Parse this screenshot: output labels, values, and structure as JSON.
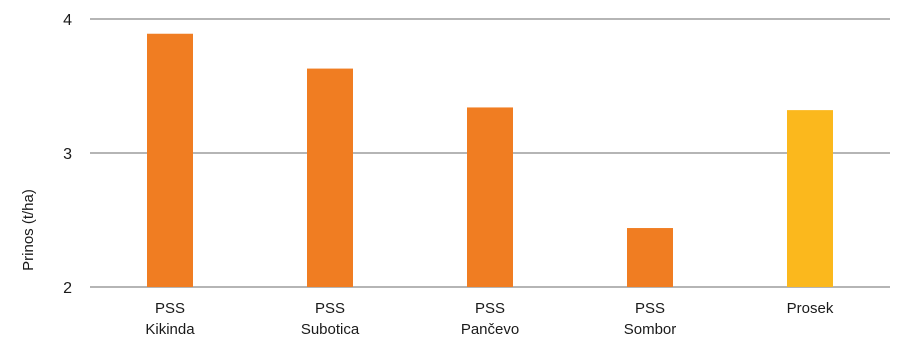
{
  "chart_data": {
    "type": "bar",
    "title": "",
    "xlabel": "",
    "ylabel": "Prinos (t/ha)",
    "ylim": [
      2,
      4
    ],
    "yticks": [
      2,
      3,
      4
    ],
    "grid": true,
    "categories": [
      [
        "PSS",
        "Kikinda"
      ],
      [
        "PSS",
        "Subotica"
      ],
      [
        "PSS",
        "Pančevo"
      ],
      [
        "PSS",
        "Sombor"
      ],
      [
        "Prosek"
      ]
    ],
    "values": [
      3.89,
      3.63,
      3.34,
      2.44,
      3.32
    ],
    "colors": [
      "#f07d22",
      "#f07d22",
      "#f07d22",
      "#f07d22",
      "#fbb81d"
    ]
  }
}
